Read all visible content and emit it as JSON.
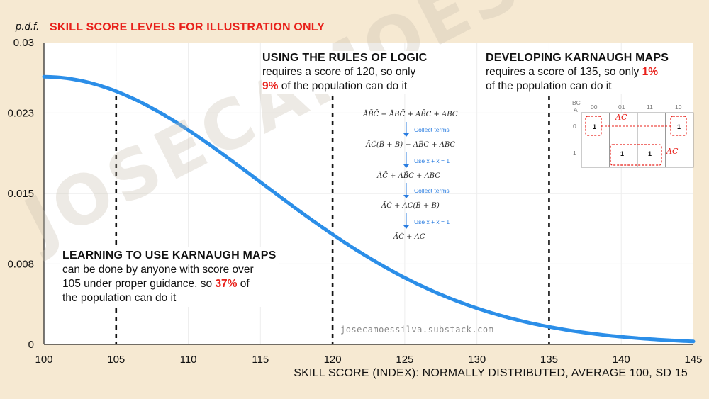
{
  "header": {
    "y_axis_label": "p.d.f.",
    "title": "SKILL SCORE LEVELS FOR ILLUSTRATION ONLY"
  },
  "x_axis_label": "SKILL SCORE (INDEX): NORMALLY DISTRIBUTED, AVERAGE 100, SD 15",
  "credit": "josecamoessilva.substack.com",
  "watermark": "JOSECAMOESSILVA",
  "annotations": {
    "left": {
      "heading": "LEARNING TO USE KARNAUGH MAPS",
      "line1": "can be done by anyone with score over",
      "line2_pre": "105 under proper guidance, so ",
      "pct": "37%",
      "line2_post": " of",
      "line3": "the population can do it"
    },
    "middle": {
      "heading": "USING THE RULES OF LOGIC",
      "line1": "requires a score of 120, so only",
      "pct": "9%",
      "line2_post": " of the population can do it"
    },
    "right": {
      "heading": "DEVELOPING KARNAUGH MAPS",
      "line1_pre": "requires a score of 135, so only ",
      "pct": "1%",
      "line2": "of the population can do it"
    }
  },
  "derivation": {
    "step1": "ĀB̄C̄ + ĀBC̄ + AB̄C + ABC",
    "note1": "Collect terms",
    "step2": "ĀC̄(B̄ + B) + AB̄C + ABC",
    "note2": "Use x + x̄ = 1",
    "step3": "ĀC̄ + AB̄C + ABC",
    "note3": "Collect terms",
    "step4": "ĀC̄ + AC(B̄ + B)",
    "note4": "Use x + x̄ = 1",
    "step5": "ĀC̄ + AC"
  },
  "kmap": {
    "bc_label": "BC",
    "a_label": "A",
    "col_headers": [
      "00",
      "01",
      "11",
      "10"
    ],
    "row_headers": [
      "0",
      "1"
    ],
    "one": "1",
    "group_top": "ĀC̄",
    "group_bottom": "AC"
  },
  "colors": {
    "accent_red": "#e8201a",
    "curve_blue": "#2b8ee8",
    "background": "#f6e9d2",
    "note_blue": "#2a7de1"
  },
  "chart_data": {
    "type": "line",
    "series": [
      {
        "name": "",
        "distribution": "normal",
        "mean": 100,
        "sd": 15
      }
    ],
    "x_ticks": [
      100,
      105,
      110,
      115,
      120,
      125,
      130,
      135,
      140,
      145
    ],
    "y_ticks": [
      0,
      0.008,
      0.015,
      0.023,
      0.03
    ],
    "xlim": [
      100,
      145
    ],
    "ylim": [
      0,
      0.03
    ],
    "vertical_lines": [
      105,
      120,
      135
    ],
    "grid": true
  }
}
